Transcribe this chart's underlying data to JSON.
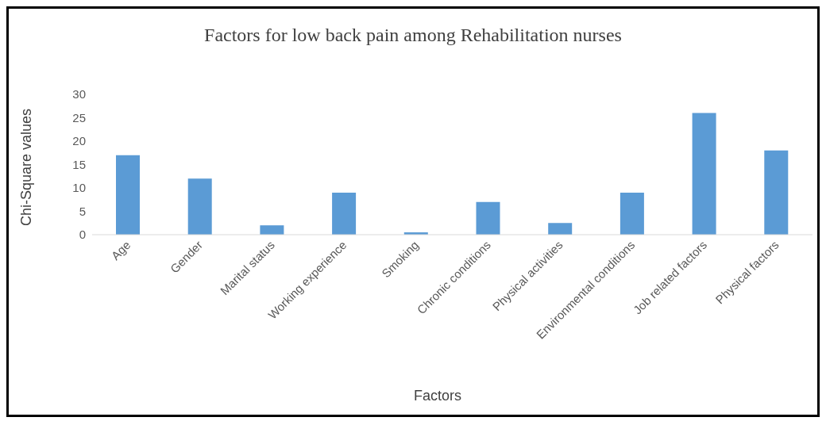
{
  "chart_data": {
    "type": "bar",
    "title": "Factors for low back pain among Rehabilitation nurses",
    "xlabel": "Factors",
    "ylabel": "Chi-Square values",
    "categories": [
      "Age",
      "Gender",
      "Marital status",
      "Working experience",
      "Smoking",
      "Chronic conditions",
      "Physical activities",
      "Environmental conditions",
      "Job related factors",
      "Physical factors"
    ],
    "values": [
      17,
      12,
      2,
      9,
      0.5,
      7,
      2.5,
      9,
      26,
      18
    ],
    "color": "#5b9bd5",
    "ylim": [
      0,
      30
    ],
    "yticks": [
      0,
      5,
      10,
      15,
      20,
      25,
      30
    ],
    "grid": false,
    "legend": false
  }
}
